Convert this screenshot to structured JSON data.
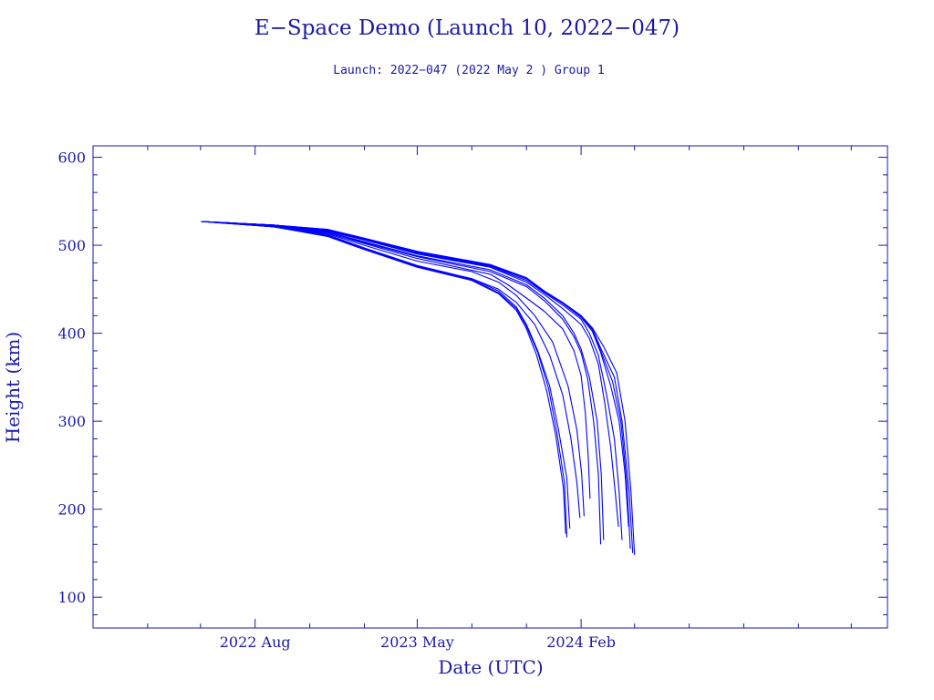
{
  "chart_data": {
    "type": "line",
    "title": "E−Space Demo (Launch 10, 2022−047)",
    "subtitle": "Launch: 2022−047  (2022 May  2 )  Group 1",
    "xlabel": "Date (UTC)",
    "ylabel": "Height (km)",
    "x_type": "date",
    "xlim": [
      "2021-11-01",
      "2025-07-01"
    ],
    "ylim": [
      65,
      613
    ],
    "x_ticks": [
      {
        "date": "2022-08-01",
        "label": "2022 Aug"
      },
      {
        "date": "2023-05-01",
        "label": "2023 May"
      },
      {
        "date": "2024-02-01",
        "label": "2024 Feb"
      }
    ],
    "y_ticks": [
      100,
      200,
      300,
      400,
      500,
      600
    ],
    "grid": false,
    "legend": "none",
    "colors": {
      "axes": "#1a1aa6",
      "series": "#0000ff"
    },
    "series": [
      {
        "points": [
          [
            "2022-05-02",
            527
          ],
          [
            "2022-09-01",
            523
          ],
          [
            "2022-12-01",
            518
          ],
          [
            "2023-02-01",
            508
          ],
          [
            "2023-05-01",
            493
          ],
          [
            "2023-09-01",
            478
          ],
          [
            "2023-11-01",
            463
          ],
          [
            "2023-12-01",
            448
          ],
          [
            "2024-01-01",
            435
          ],
          [
            "2024-02-01",
            420
          ],
          [
            "2024-02-20",
            406
          ],
          [
            "2024-03-10",
            385
          ],
          [
            "2024-04-01",
            355
          ],
          [
            "2024-04-15",
            300
          ],
          [
            "2024-04-25",
            220
          ],
          [
            "2024-05-01",
            148
          ]
        ]
      },
      {
        "points": [
          [
            "2022-05-02",
            527
          ],
          [
            "2022-09-01",
            523
          ],
          [
            "2022-12-01",
            518
          ],
          [
            "2023-02-01",
            508
          ],
          [
            "2023-05-01",
            493
          ],
          [
            "2023-09-01",
            478
          ],
          [
            "2023-11-01",
            463
          ],
          [
            "2023-12-01",
            448
          ],
          [
            "2024-01-01",
            435
          ],
          [
            "2024-02-01",
            420
          ],
          [
            "2024-02-20",
            405
          ],
          [
            "2024-03-05",
            383
          ],
          [
            "2024-03-28",
            350
          ],
          [
            "2024-04-10",
            300
          ],
          [
            "2024-04-22",
            220
          ],
          [
            "2024-04-28",
            150
          ]
        ]
      },
      {
        "points": [
          [
            "2022-05-02",
            527
          ],
          [
            "2022-09-01",
            523
          ],
          [
            "2022-12-01",
            517
          ],
          [
            "2023-02-01",
            507
          ],
          [
            "2023-05-01",
            492
          ],
          [
            "2023-09-01",
            477
          ],
          [
            "2023-11-01",
            462
          ],
          [
            "2023-12-01",
            447
          ],
          [
            "2024-01-01",
            434
          ],
          [
            "2024-02-01",
            419
          ],
          [
            "2024-02-20",
            404
          ],
          [
            "2024-03-05",
            380
          ],
          [
            "2024-03-25",
            345
          ],
          [
            "2024-04-08",
            300
          ],
          [
            "2024-04-18",
            230
          ],
          [
            "2024-04-24",
            155
          ]
        ]
      },
      {
        "points": [
          [
            "2022-05-02",
            527
          ],
          [
            "2022-09-01",
            523
          ],
          [
            "2022-12-01",
            517
          ],
          [
            "2023-02-01",
            507
          ],
          [
            "2023-05-01",
            492
          ],
          [
            "2023-09-01",
            477
          ],
          [
            "2023-11-01",
            462
          ],
          [
            "2023-12-01",
            447
          ],
          [
            "2024-01-01",
            434
          ],
          [
            "2024-02-01",
            418
          ],
          [
            "2024-02-20",
            402
          ],
          [
            "2024-03-05",
            378
          ],
          [
            "2024-03-22",
            340
          ],
          [
            "2024-04-05",
            300
          ],
          [
            "2024-04-15",
            240
          ],
          [
            "2024-04-21",
            180
          ]
        ]
      },
      {
        "points": [
          [
            "2022-05-02",
            527
          ],
          [
            "2022-09-01",
            523
          ],
          [
            "2022-12-01",
            516
          ],
          [
            "2023-02-01",
            506
          ],
          [
            "2023-05-01",
            491
          ],
          [
            "2023-09-01",
            476
          ],
          [
            "2023-11-01",
            460
          ],
          [
            "2023-12-01",
            446
          ],
          [
            "2024-01-01",
            432
          ],
          [
            "2024-02-01",
            416
          ],
          [
            "2024-02-15",
            400
          ],
          [
            "2024-03-01",
            375
          ],
          [
            "2024-03-15",
            330
          ],
          [
            "2024-03-28",
            280
          ],
          [
            "2024-04-05",
            220
          ],
          [
            "2024-04-10",
            165
          ]
        ]
      },
      {
        "points": [
          [
            "2022-05-02",
            527
          ],
          [
            "2022-09-01",
            523
          ],
          [
            "2022-12-01",
            516
          ],
          [
            "2023-02-01",
            506
          ],
          [
            "2023-05-01",
            490
          ],
          [
            "2023-09-01",
            475
          ],
          [
            "2023-11-01",
            458
          ],
          [
            "2023-12-01",
            444
          ],
          [
            "2024-01-01",
            428
          ],
          [
            "2024-02-01",
            410
          ],
          [
            "2024-02-15",
            394
          ],
          [
            "2024-03-01",
            365
          ],
          [
            "2024-03-12",
            320
          ],
          [
            "2024-03-22",
            270
          ],
          [
            "2024-03-30",
            215
          ],
          [
            "2024-04-04",
            180
          ]
        ]
      },
      {
        "points": [
          [
            "2022-05-02",
            527
          ],
          [
            "2022-09-01",
            522
          ],
          [
            "2022-12-01",
            515
          ],
          [
            "2023-02-01",
            504
          ],
          [
            "2023-05-01",
            488
          ],
          [
            "2023-09-01",
            472
          ],
          [
            "2023-11-01",
            455
          ],
          [
            "2023-12-01",
            440
          ],
          [
            "2024-01-01",
            420
          ],
          [
            "2024-01-20",
            400
          ],
          [
            "2024-02-01",
            382
          ],
          [
            "2024-02-15",
            350
          ],
          [
            "2024-02-28",
            300
          ],
          [
            "2024-03-06",
            240
          ],
          [
            "2024-03-10",
            165
          ]
        ]
      },
      {
        "points": [
          [
            "2022-05-02",
            527
          ],
          [
            "2022-09-01",
            522
          ],
          [
            "2022-12-01",
            515
          ],
          [
            "2023-02-01",
            503
          ],
          [
            "2023-05-01",
            487
          ],
          [
            "2023-09-01",
            470
          ],
          [
            "2023-11-01",
            453
          ],
          [
            "2023-12-01",
            437
          ],
          [
            "2024-01-01",
            416
          ],
          [
            "2024-01-20",
            396
          ],
          [
            "2024-02-01",
            378
          ],
          [
            "2024-02-12",
            348
          ],
          [
            "2024-02-22",
            300
          ],
          [
            "2024-03-01",
            240
          ],
          [
            "2024-03-05",
            160
          ]
        ]
      },
      {
        "points": [
          [
            "2022-05-02",
            527
          ],
          [
            "2022-09-01",
            522
          ],
          [
            "2022-12-01",
            514
          ],
          [
            "2023-02-01",
            502
          ],
          [
            "2023-05-01",
            485
          ],
          [
            "2023-09-01",
            467
          ],
          [
            "2023-10-01",
            455
          ],
          [
            "2023-11-01",
            440
          ],
          [
            "2023-12-01",
            425
          ],
          [
            "2024-01-01",
            405
          ],
          [
            "2024-01-20",
            380
          ],
          [
            "2024-02-01",
            352
          ],
          [
            "2024-02-08",
            310
          ],
          [
            "2024-02-13",
            260
          ],
          [
            "2024-02-16",
            212
          ]
        ]
      },
      {
        "points": [
          [
            "2022-05-02",
            527
          ],
          [
            "2022-09-01",
            522
          ],
          [
            "2022-12-01",
            513
          ],
          [
            "2023-02-01",
            500
          ],
          [
            "2023-05-01",
            482
          ],
          [
            "2023-08-01",
            470
          ],
          [
            "2023-09-15",
            458
          ],
          [
            "2023-10-15",
            443
          ],
          [
            "2023-11-15",
            420
          ],
          [
            "2023-12-15",
            390
          ],
          [
            "2024-01-10",
            340
          ],
          [
            "2024-01-25",
            290
          ],
          [
            "2024-02-02",
            240
          ],
          [
            "2024-02-06",
            192
          ]
        ]
      },
      {
        "points": [
          [
            "2022-05-02",
            527
          ],
          [
            "2022-09-01",
            522
          ],
          [
            "2022-12-01",
            512
          ],
          [
            "2023-02-01",
            497
          ],
          [
            "2023-05-01",
            477
          ],
          [
            "2023-08-01",
            462
          ],
          [
            "2023-09-15",
            450
          ],
          [
            "2023-10-15",
            435
          ],
          [
            "2023-11-15",
            410
          ],
          [
            "2023-12-10",
            375
          ],
          [
            "2024-01-01",
            330
          ],
          [
            "2024-01-15",
            280
          ],
          [
            "2024-01-25",
            230
          ],
          [
            "2024-01-30",
            190
          ]
        ]
      },
      {
        "points": [
          [
            "2022-05-02",
            527
          ],
          [
            "2022-09-01",
            521
          ],
          [
            "2022-12-01",
            511
          ],
          [
            "2023-02-01",
            496
          ],
          [
            "2023-05-01",
            476
          ],
          [
            "2023-08-01",
            462
          ],
          [
            "2023-09-15",
            448
          ],
          [
            "2023-10-15",
            430
          ],
          [
            "2023-11-01",
            410
          ],
          [
            "2023-11-20",
            380
          ],
          [
            "2023-12-10",
            340
          ],
          [
            "2023-12-25",
            290
          ],
          [
            "2024-01-08",
            235
          ],
          [
            "2024-01-13",
            178
          ]
        ]
      },
      {
        "points": [
          [
            "2022-05-02",
            527
          ],
          [
            "2022-09-01",
            521
          ],
          [
            "2022-12-01",
            511
          ],
          [
            "2023-02-01",
            496
          ],
          [
            "2023-05-01",
            476
          ],
          [
            "2023-08-01",
            461
          ],
          [
            "2023-09-15",
            446
          ],
          [
            "2023-10-15",
            428
          ],
          [
            "2023-11-01",
            408
          ],
          [
            "2023-11-20",
            378
          ],
          [
            "2023-12-08",
            338
          ],
          [
            "2023-12-22",
            288
          ],
          [
            "2024-01-04",
            230
          ],
          [
            "2024-01-08",
            168
          ]
        ]
      },
      {
        "points": [
          [
            "2022-05-02",
            527
          ],
          [
            "2022-09-01",
            521
          ],
          [
            "2022-12-01",
            510
          ],
          [
            "2023-02-01",
            495
          ],
          [
            "2023-05-01",
            475
          ],
          [
            "2023-08-01",
            460
          ],
          [
            "2023-09-15",
            445
          ],
          [
            "2023-10-15",
            426
          ],
          [
            "2023-11-01",
            405
          ],
          [
            "2023-11-18",
            375
          ],
          [
            "2023-12-05",
            335
          ],
          [
            "2023-12-20",
            285
          ],
          [
            "2024-01-02",
            225
          ],
          [
            "2024-01-06",
            172
          ]
        ]
      }
    ]
  }
}
